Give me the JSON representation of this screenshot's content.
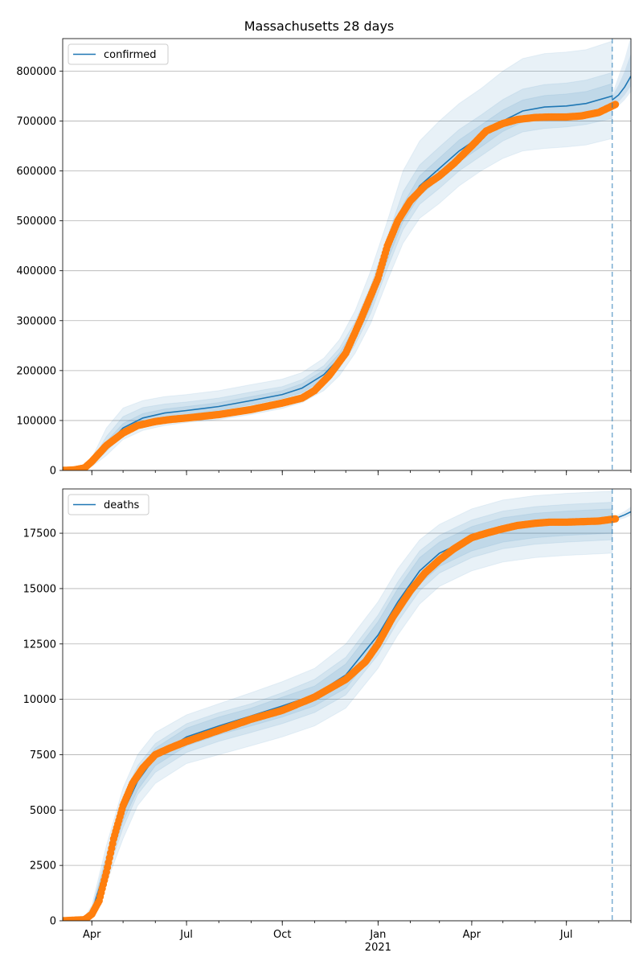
{
  "title": "Massachusetts 28 days",
  "x_axis": {
    "tick_labels": [
      "Apr",
      "Jul",
      "Oct",
      "Jan",
      "Apr",
      "Jul"
    ],
    "tick_dates": [
      "2020-04-01",
      "2020-07-01",
      "2020-10-01",
      "2021-01-01",
      "2021-04-01",
      "2021-07-01"
    ],
    "year_label": "2021",
    "range": [
      "2020-03-04",
      "2021-09-01"
    ],
    "forecast_marker": "2021-08-14"
  },
  "colors": {
    "model": "#1f77b4",
    "observed": "#ff7f0e",
    "band": "#1f77b4",
    "grid": "#b0b0b0"
  },
  "chart_data": [
    {
      "type": "line",
      "name": "confirmed",
      "legend": "confirmed",
      "legend_position": "top-left",
      "grid": "y",
      "ylim": [
        0,
        865000
      ],
      "yticks": [
        0,
        100000,
        200000,
        300000,
        400000,
        500000,
        600000,
        700000,
        800000
      ],
      "model_line": {
        "dates": [
          "2020-03-04",
          "2020-03-20",
          "2020-04-01",
          "2020-04-15",
          "2020-05-01",
          "2020-05-20",
          "2020-06-10",
          "2020-07-01",
          "2020-08-01",
          "2020-09-01",
          "2020-10-01",
          "2020-10-20",
          "2020-11-10",
          "2020-11-25",
          "2020-12-10",
          "2020-12-25",
          "2021-01-10",
          "2021-01-25",
          "2021-02-10",
          "2021-03-01",
          "2021-03-20",
          "2021-04-10",
          "2021-05-01",
          "2021-05-20",
          "2021-06-10",
          "2021-07-01",
          "2021-07-20",
          "2021-08-14"
        ],
        "values": [
          0,
          2000,
          15000,
          50000,
          85000,
          105000,
          115000,
          120000,
          128000,
          140000,
          152000,
          165000,
          192000,
          225000,
          275000,
          340000,
          435000,
          515000,
          570000,
          605000,
          640000,
          670000,
          700000,
          720000,
          728000,
          730000,
          735000,
          750000
        ]
      },
      "bands": [
        {
          "lower": [
            0,
            1000,
            8000,
            30000,
            62000,
            80000,
            90000,
            96000,
            102000,
            112000,
            124000,
            136000,
            160000,
            190000,
            235000,
            295000,
            380000,
            455000,
            505000,
            535000,
            570000,
            600000,
            625000,
            640000,
            645000,
            648000,
            652000,
            665000
          ],
          "upper": [
            0,
            4000,
            25000,
            85000,
            125000,
            140000,
            148000,
            152000,
            160000,
            172000,
            183000,
            196000,
            225000,
            262000,
            320000,
            400000,
            500000,
            600000,
            660000,
            700000,
            735000,
            765000,
            800000,
            825000,
            835000,
            838000,
            843000,
            860000
          ]
        },
        {
          "lower": [
            0,
            1200,
            10000,
            38000,
            72000,
            90000,
            100000,
            106000,
            113000,
            124000,
            136000,
            148000,
            174000,
            205000,
            252000,
            315000,
            405000,
            482000,
            533000,
            565000,
            600000,
            630000,
            660000,
            678000,
            685000,
            688000,
            693000,
            705000
          ],
          "upper": [
            0,
            3000,
            20000,
            68000,
            108000,
            126000,
            133000,
            137000,
            145000,
            157000,
            168000,
            182000,
            210000,
            245000,
            298000,
            370000,
            468000,
            558000,
            612000,
            648000,
            683000,
            712000,
            743000,
            764000,
            773000,
            776000,
            782000,
            797000
          ]
        },
        {
          "lower": [
            0,
            1500,
            12000,
            44000,
            78000,
            97000,
            107000,
            112000,
            120000,
            132000,
            144000,
            156000,
            183000,
            215000,
            263000,
            327000,
            420000,
            498000,
            550000,
            584000,
            618000,
            648000,
            679000,
            698000,
            705000,
            708000,
            713000,
            726000
          ],
          "upper": [
            0,
            2500,
            18000,
            58000,
            94000,
            114000,
            123000,
            128000,
            136000,
            148000,
            160000,
            174000,
            201000,
            235000,
            287000,
            353000,
            451000,
            533000,
            590000,
            626000,
            662000,
            692000,
            722000,
            742000,
            751000,
            754000,
            759000,
            775000
          ]
        }
      ],
      "forecast_line": {
        "dates": [
          "2021-08-14",
          "2021-08-20",
          "2021-08-26",
          "2021-09-01"
        ],
        "values": [
          742000,
          752000,
          768000,
          790000
        ]
      },
      "forecast_bands": [
        {
          "lower": [
            725000,
            730000,
            742000,
            758000
          ],
          "upper": [
            755000,
            790000,
            825000,
            870000
          ]
        },
        {
          "lower": [
            730000,
            738000,
            752000,
            770000
          ],
          "upper": [
            750000,
            772000,
            800000,
            835000
          ]
        }
      ],
      "observed": {
        "dates": [
          "2020-03-04",
          "2020-03-15",
          "2020-03-25",
          "2020-04-01",
          "2020-04-15",
          "2020-05-01",
          "2020-05-15",
          "2020-06-01",
          "2020-06-15",
          "2020-07-01",
          "2020-08-01",
          "2020-09-01",
          "2020-10-01",
          "2020-10-20",
          "2020-11-01",
          "2020-11-15",
          "2020-12-01",
          "2020-12-15",
          "2021-01-01",
          "2021-01-10",
          "2021-01-20",
          "2021-02-01",
          "2021-02-15",
          "2021-03-01",
          "2021-03-15",
          "2021-04-01",
          "2021-04-15",
          "2021-05-01",
          "2021-05-15",
          "2021-06-01",
          "2021-06-15",
          "2021-07-01",
          "2021-07-15",
          "2021-08-01",
          "2021-08-17"
        ],
        "values": [
          0,
          1000,
          5000,
          18000,
          50000,
          75000,
          90000,
          98000,
          102000,
          105000,
          112000,
          122000,
          135000,
          145000,
          160000,
          190000,
          235000,
          300000,
          385000,
          450000,
          500000,
          540000,
          570000,
          590000,
          615000,
          650000,
          680000,
          695000,
          703000,
          707000,
          708000,
          708000,
          710000,
          717000,
          733000
        ]
      }
    },
    {
      "type": "line",
      "name": "deaths",
      "legend": "deaths",
      "legend_position": "top-left",
      "grid": "y",
      "ylim": [
        0,
        19500
      ],
      "yticks": [
        0,
        2500,
        5000,
        7500,
        10000,
        12500,
        15000,
        17500
      ],
      "model_line": {
        "dates": [
          "2020-03-04",
          "2020-03-25",
          "2020-04-01",
          "2020-04-15",
          "2020-05-01",
          "2020-05-15",
          "2020-06-01",
          "2020-07-01",
          "2020-08-01",
          "2020-09-01",
          "2020-10-01",
          "2020-11-01",
          "2020-12-01",
          "2021-01-01",
          "2021-01-20",
          "2021-02-10",
          "2021-03-01",
          "2021-04-01",
          "2021-05-01",
          "2021-06-01",
          "2021-07-01",
          "2021-08-14"
        ],
        "values": [
          0,
          50,
          400,
          2500,
          4900,
          6300,
          7400,
          8300,
          8800,
          9250,
          9700,
          10200,
          11100,
          12900,
          14400,
          15800,
          16600,
          17300,
          17700,
          17900,
          18000,
          18100
        ]
      },
      "bands": [
        {
          "lower": [
            0,
            10,
            150,
            1700,
            3700,
            5200,
            6200,
            7100,
            7500,
            7900,
            8300,
            8800,
            9600,
            11400,
            12900,
            14300,
            15100,
            15800,
            16200,
            16400,
            16500,
            16600
          ],
          "upper": [
            0,
            150,
            700,
            3400,
            6000,
            7500,
            8500,
            9300,
            9800,
            10300,
            10800,
            11400,
            12500,
            14400,
            15900,
            17200,
            17900,
            18600,
            19000,
            19200,
            19300,
            19400
          ]
        },
        {
          "lower": [
            0,
            20,
            250,
            2000,
            4200,
            5700,
            6700,
            7600,
            8100,
            8500,
            8900,
            9400,
            10200,
            12000,
            13500,
            14900,
            15700,
            16400,
            16800,
            17000,
            17100,
            17200
          ],
          "upper": [
            0,
            110,
            550,
            3000,
            5600,
            7000,
            8000,
            8900,
            9400,
            9800,
            10300,
            10900,
            11900,
            13800,
            15300,
            16700,
            17400,
            18100,
            18500,
            18700,
            18800,
            18900
          ]
        },
        {
          "lower": [
            0,
            30,
            300,
            2200,
            4500,
            5900,
            7000,
            7900,
            8400,
            8800,
            9200,
            9700,
            10500,
            12300,
            13800,
            15200,
            16000,
            16700,
            17100,
            17300,
            17400,
            17500
          ],
          "upper": [
            0,
            80,
            500,
            2800,
            5300,
            6700,
            7800,
            8700,
            9200,
            9600,
            10100,
            10600,
            11600,
            13500,
            15000,
            16400,
            17100,
            17800,
            18200,
            18400,
            18500,
            18600
          ]
        }
      ],
      "forecast_line": {
        "dates": [
          "2021-08-14",
          "2021-08-20",
          "2021-08-26",
          "2021-09-01"
        ],
        "values": [
          18150,
          18220,
          18330,
          18470
        ]
      },
      "forecast_bands": [
        {
          "lower": [
            18050,
            18100,
            18180,
            18300
          ],
          "upper": [
            18250,
            18350,
            18500,
            18700
          ]
        }
      ],
      "observed": {
        "dates": [
          "2020-03-04",
          "2020-03-25",
          "2020-04-01",
          "2020-04-08",
          "2020-04-15",
          "2020-04-22",
          "2020-05-01",
          "2020-05-10",
          "2020-05-20",
          "2020-06-01",
          "2020-06-15",
          "2020-07-01",
          "2020-08-01",
          "2020-09-01",
          "2020-10-01",
          "2020-11-01",
          "2020-12-01",
          "2020-12-20",
          "2021-01-01",
          "2021-01-15",
          "2021-02-01",
          "2021-02-15",
          "2021-03-01",
          "2021-03-15",
          "2021-04-01",
          "2021-04-15",
          "2021-05-01",
          "2021-05-15",
          "2021-06-01",
          "2021-06-15",
          "2021-07-01",
          "2021-08-01",
          "2021-08-17"
        ],
        "values": [
          0,
          50,
          300,
          900,
          2200,
          3700,
          5200,
          6200,
          6900,
          7500,
          7800,
          8100,
          8600,
          9100,
          9500,
          10100,
          10900,
          11700,
          12500,
          13700,
          14900,
          15700,
          16300,
          16800,
          17300,
          17500,
          17700,
          17850,
          17950,
          18000,
          18000,
          18050,
          18150
        ]
      }
    }
  ]
}
